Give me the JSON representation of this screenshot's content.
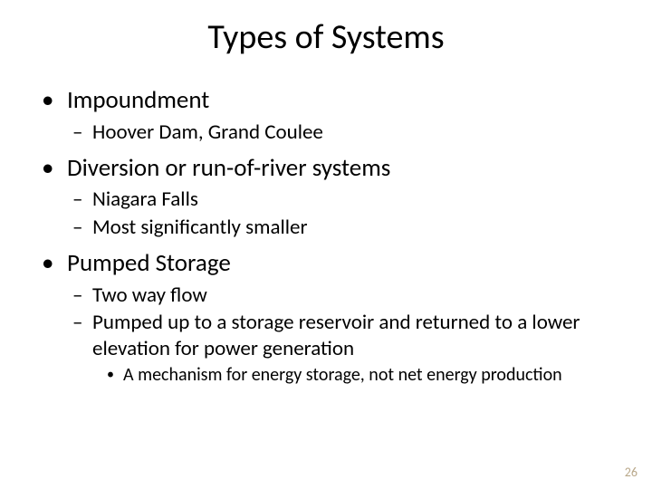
{
  "slide": {
    "title": "Types of Systems",
    "title_fontsize": 38,
    "body_l1_fontsize": 27,
    "body_l2_fontsize": 23,
    "body_l3_fontsize": 20,
    "background_color": "#ffffff",
    "text_color": "#000000",
    "bullets_l1_glyph": "•",
    "bullets_l2_glyph": "–",
    "bullets_l3_glyph": "•",
    "items": [
      {
        "text": "Impoundment",
        "sub": [
          {
            "text": "Hoover Dam, Grand Coulee"
          }
        ]
      },
      {
        "text": "Diversion or run-of-river systems",
        "sub": [
          {
            "text": "Niagara Falls"
          },
          {
            "text": "Most significantly smaller"
          }
        ]
      },
      {
        "text": "Pumped Storage",
        "sub": [
          {
            "text": "Two way flow"
          },
          {
            "text": "Pumped up to a storage reservoir and returned to a lower elevation for power generation",
            "sub": [
              {
                "text": "A mechanism for energy storage, not net energy production"
              }
            ]
          }
        ]
      }
    ],
    "page_number": "26",
    "page_number_color": "#b9a88a"
  }
}
